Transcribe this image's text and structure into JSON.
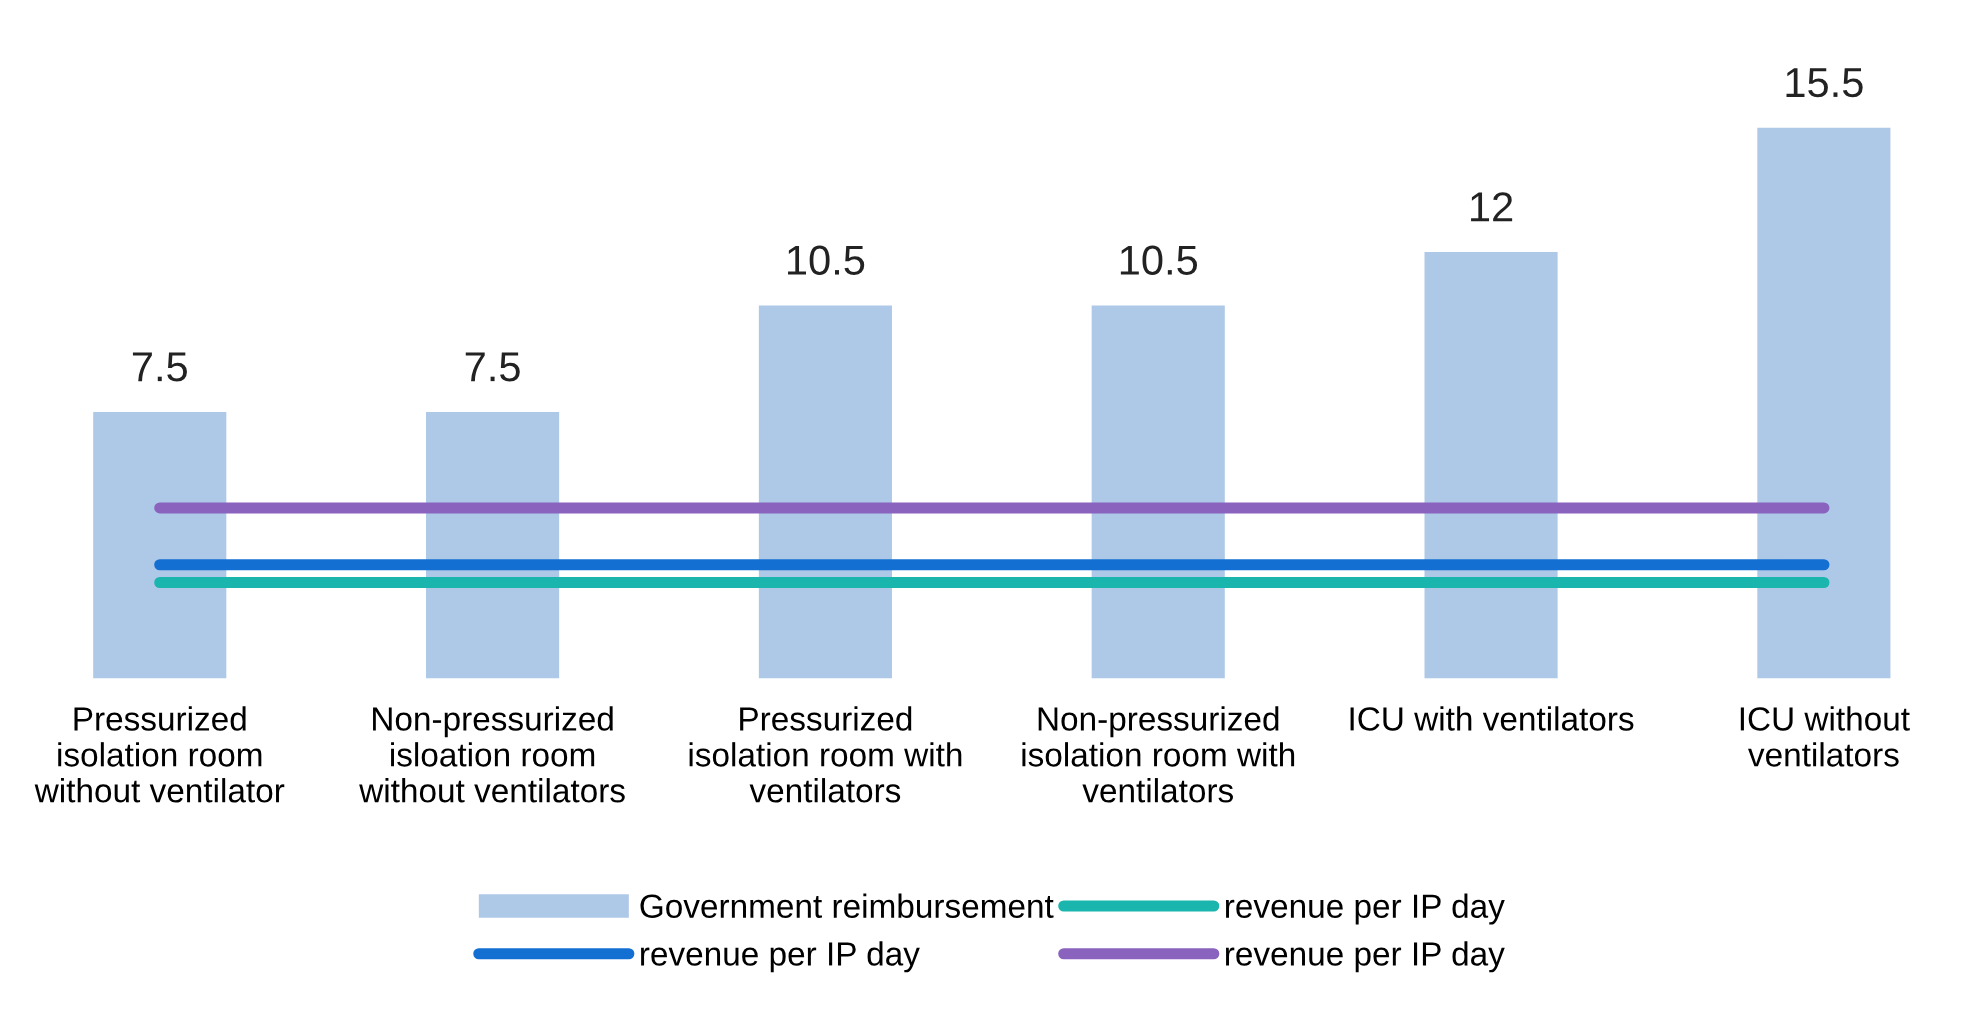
{
  "chart_data": {
    "type": "bar",
    "categories": [
      "Pressurized\nisolation room\nwithout ventilator",
      "Non-pressurized\nisloation room\nwithout ventilators",
      "Pressurized\nisolation room with\nventilators",
      "Non-pressurized\nisolation room with\nventilators",
      "ICU with ventilators",
      "ICU without\nventilators"
    ],
    "series": [
      {
        "name": "Government reimbursement",
        "color": "#aec8e8",
        "values": [
          7.5,
          7.5,
          10.5,
          10.5,
          12,
          15.5
        ],
        "value_labels": [
          "7.5",
          "7.5",
          "10.5",
          "10.5",
          "12",
          "15.5"
        ]
      },
      {
        "name": "revenue per IP day",
        "type": "line",
        "color": "#1ab5ad",
        "values": [
          2.7,
          2.7,
          2.7,
          2.7,
          2.7,
          2.7
        ]
      },
      {
        "name": "revenue per IP day",
        "type": "line",
        "color": "#1370d2",
        "values": [
          3.2,
          3.2,
          3.2,
          3.2,
          3.2,
          3.2
        ]
      },
      {
        "name": "revenue per IP day",
        "type": "line",
        "color": "#8a63bf",
        "values": [
          4.8,
          4.8,
          4.8,
          4.8,
          4.8,
          4.8
        ]
      }
    ],
    "legend": "bottom",
    "grid": false,
    "marker": "none",
    "line_style": "solid"
  }
}
